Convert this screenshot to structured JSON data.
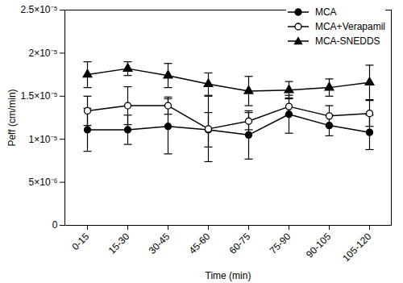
{
  "chart_data": {
    "type": "line",
    "x_label": "Time (min)",
    "y_label": "Peff (cm/min)",
    "categories": [
      "0-15",
      "15-30",
      "30-45",
      "45-60",
      "60-75",
      "75-90",
      "90-105",
      "105-120"
    ],
    "series": [
      {
        "name": "MCA",
        "color": "#000000",
        "marker": "circle",
        "values": [
          1.11e-05,
          1.11e-05,
          1.15e-05,
          1.11e-05,
          1.05e-05,
          1.29e-05,
          1.16e-05,
          1.08e-05
        ],
        "error": [
          2.5e-06,
          1.7e-06,
          3.2e-06,
          2e-06,
          2.8e-06,
          2.2e-06,
          1.2e-06,
          2e-06
        ]
      },
      {
        "name": "MCA+Verapamil",
        "color": "#000000",
        "marker": "circle-open",
        "values": [
          1.33e-05,
          1.39e-05,
          1.39e-05,
          1.12e-05,
          1.21e-05,
          1.38e-05,
          1.27e-05,
          1.3e-05
        ],
        "error": [
          1.7e-06,
          2.2e-06,
          1e-06,
          3.8e-06,
          1e-06,
          1e-06,
          1.2e-06,
          1.5e-06
        ]
      },
      {
        "name": "MCA-SNEDDS",
        "color": "#000000",
        "marker": "triangle",
        "values": [
          1.75e-05,
          1.82e-05,
          1.74e-05,
          1.64e-05,
          1.56e-05,
          1.57e-05,
          1.6e-05,
          1.66e-05
        ],
        "error": [
          1.5e-06,
          8e-07,
          1.4e-06,
          1.3e-06,
          1.7e-06,
          1e-06,
          1e-06,
          2e-06
        ]
      }
    ],
    "ylim": [
      0,
      2.5e-05
    ],
    "yticks": [
      0,
      {
        "value": 5e-06,
        "label": "5×10⁻⁶"
      },
      {
        "value": 1e-05,
        "label": "1×10⁻⁵"
      },
      {
        "value": 1.5e-05,
        "label": "1.5×10⁻⁵"
      },
      {
        "value": 2e-05,
        "label": "2×10⁻⁵"
      },
      {
        "value": 2.5e-05,
        "label": "2.5×10⁻⁵"
      }
    ],
    "grid": false,
    "legend": "top-right"
  }
}
